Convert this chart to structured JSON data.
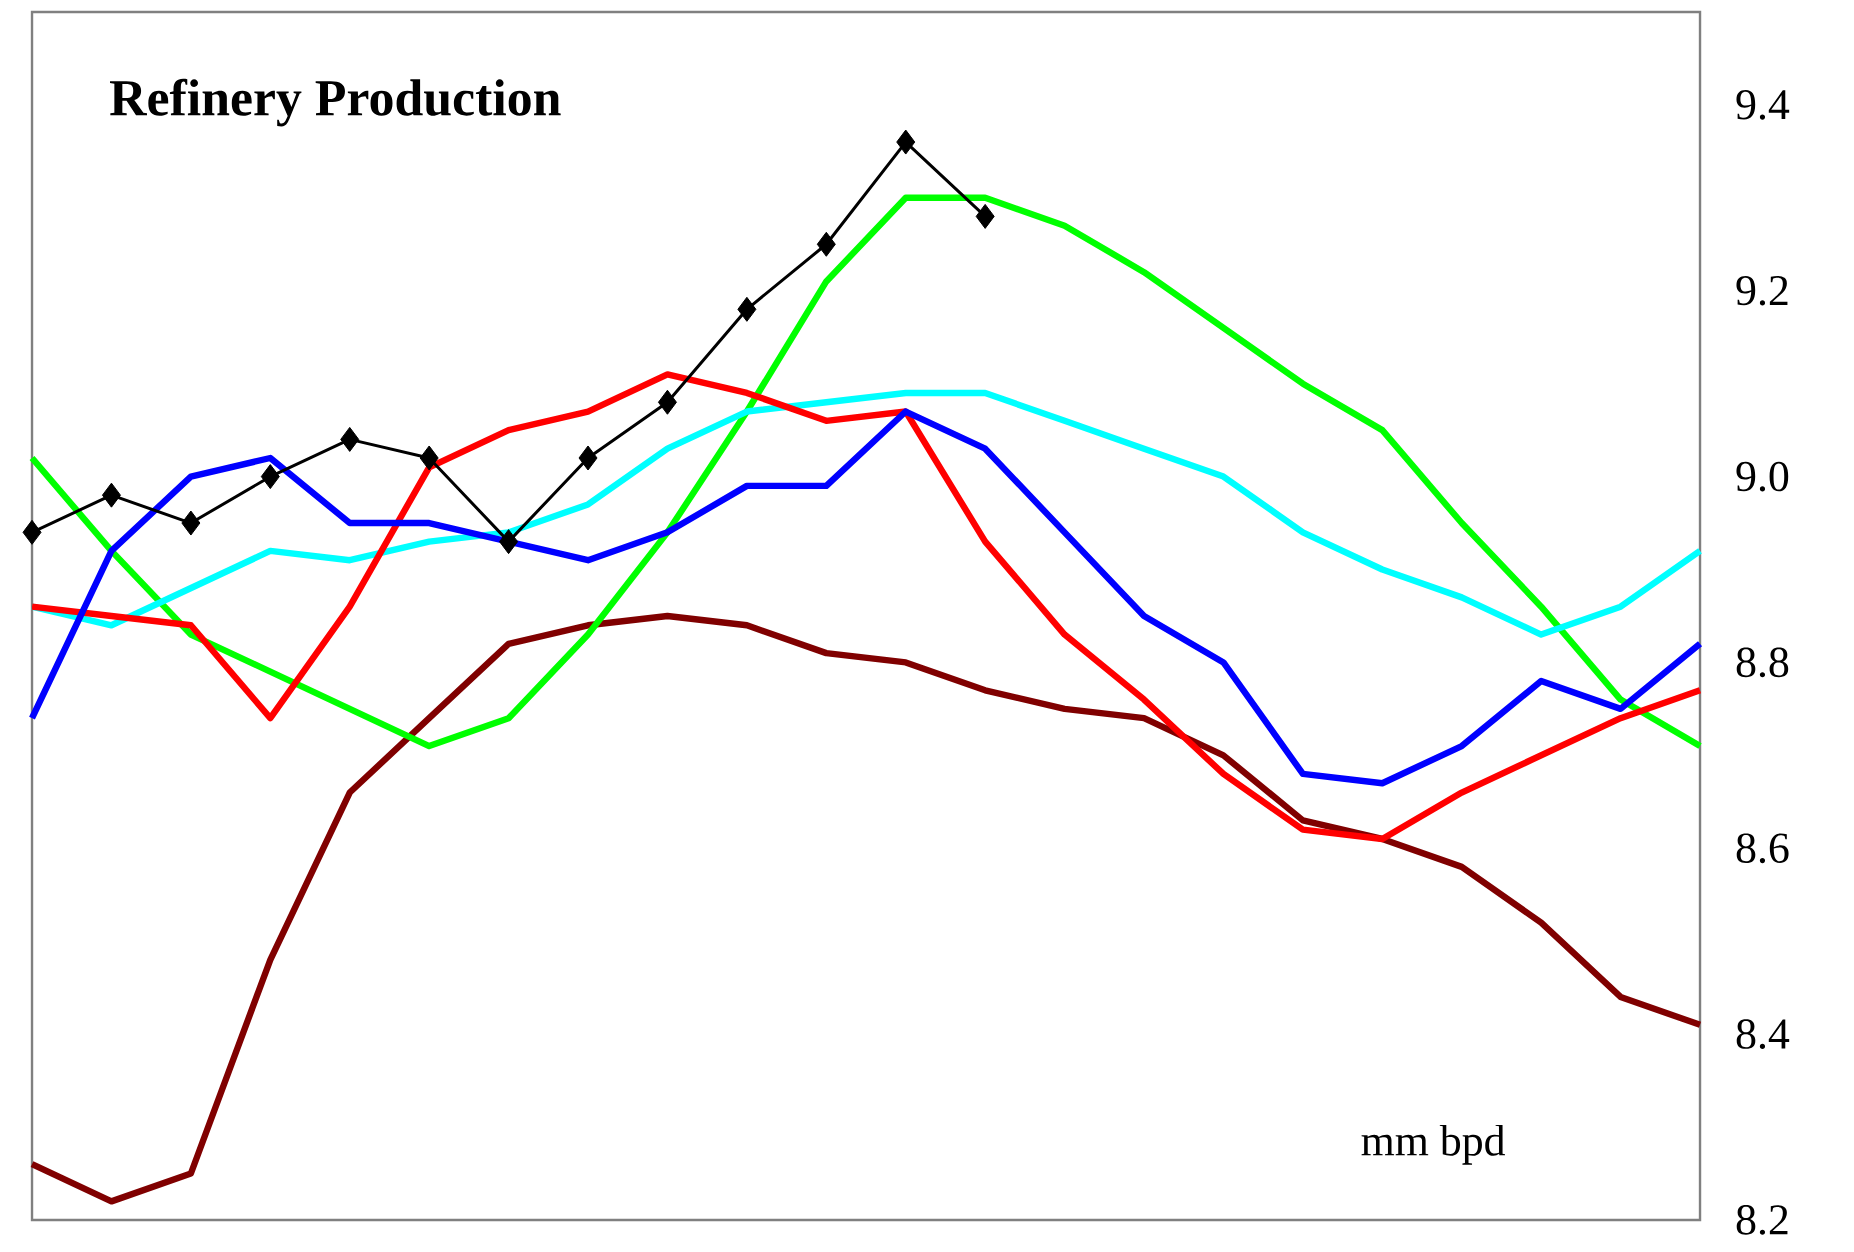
{
  "chart_data": {
    "type": "line",
    "title": "Refinery Production",
    "annotations": [
      "mm bpd"
    ],
    "categories": [
      null,
      null,
      null,
      null,
      null,
      null,
      null,
      null,
      null,
      null,
      null,
      null,
      null,
      null,
      null,
      null,
      null,
      null,
      null,
      null,
      null,
      null
    ],
    "ylim": [
      8.2,
      9.5
    ],
    "yticks": [
      8.2,
      8.4,
      8.6,
      8.8,
      {
        "value": 9.0,
        "label": "9.0"
      },
      9.2,
      9.4
    ],
    "tick_labels": "y",
    "marker": "none",
    "series": [
      {
        "color": "#800000",
        "values": [
          8.26,
          8.22,
          8.25,
          8.48,
          8.66,
          8.74,
          8.82,
          8.84,
          8.85,
          8.84,
          8.81,
          8.8,
          8.77,
          8.75,
          8.74,
          8.7,
          8.63,
          8.61,
          8.58,
          8.52,
          8.44,
          8.41
        ]
      },
      {
        "color": "#00ff00",
        "values": [
          9.02,
          8.92,
          8.83,
          8.79,
          8.75,
          8.71,
          8.74,
          8.83,
          8.94,
          9.07,
          9.21,
          9.3,
          9.3,
          9.27,
          9.22,
          9.16,
          9.1,
          9.05,
          8.95,
          8.86,
          8.76,
          8.71
        ]
      },
      {
        "color": "#00ffff",
        "values": [
          8.86,
          8.84,
          8.88,
          8.92,
          8.91,
          8.93,
          8.94,
          8.97,
          9.03,
          9.07,
          9.08,
          9.09,
          9.09,
          9.06,
          9.03,
          9.0,
          8.94,
          8.9,
          8.87,
          8.83,
          8.86,
          8.92
        ]
      },
      {
        "color": "#ff0000",
        "values": [
          8.86,
          8.85,
          8.84,
          8.74,
          8.86,
          9.01,
          9.05,
          9.07,
          9.11,
          9.09,
          9.06,
          9.07,
          8.93,
          8.83,
          8.76,
          8.68,
          8.62,
          8.61,
          8.66,
          8.7,
          8.74,
          8.77
        ]
      },
      {
        "color": "#0000ff",
        "values": [
          8.74,
          8.92,
          9.0,
          9.02,
          8.95,
          8.95,
          8.93,
          8.91,
          8.94,
          8.99,
          8.99,
          9.07,
          9.03,
          8.94,
          8.85,
          8.8,
          8.68,
          8.67,
          8.71,
          8.78,
          8.75,
          8.82
        ]
      },
      {
        "color": "#000000",
        "marker": "diamond",
        "values": [
          8.94,
          8.98,
          8.95,
          9.0,
          9.04,
          9.02,
          8.93,
          9.02,
          9.08,
          9.18,
          9.25,
          9.36,
          9.28,
          null,
          null,
          null,
          null,
          null,
          null,
          null,
          null,
          null
        ]
      }
    ]
  }
}
